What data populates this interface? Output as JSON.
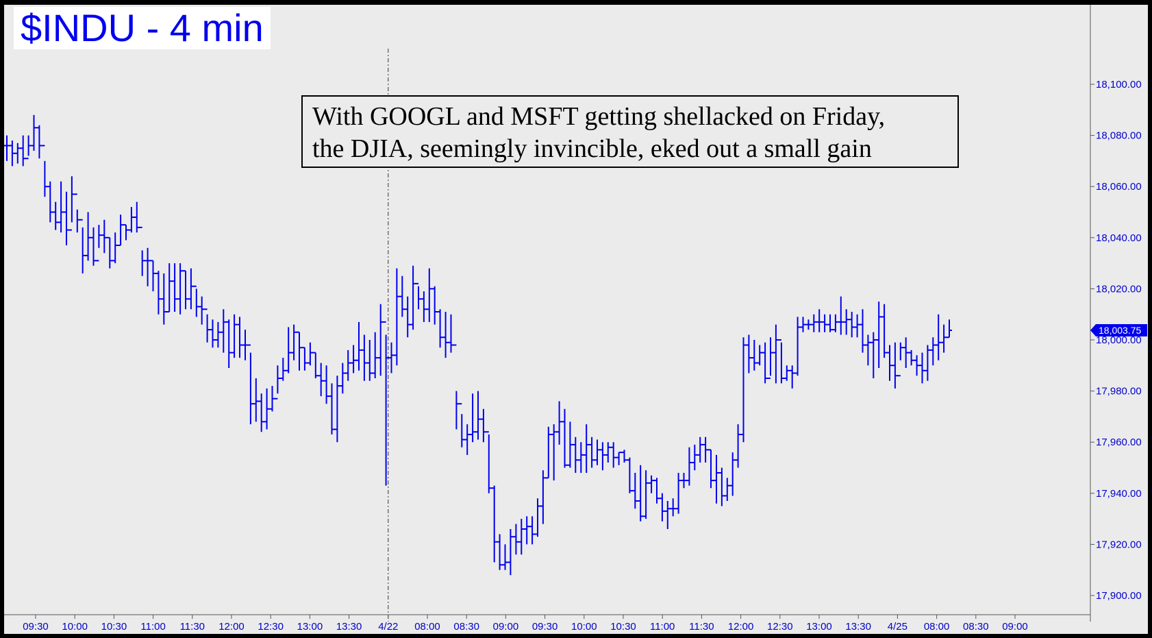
{
  "chart_data": {
    "type": "line",
    "title": "$INDU - 4 min",
    "annotation": [
      "With GOOGL and MSFT getting shellacked on Friday,",
      "the DJIA, seemingly invincible, eked out a small gain"
    ],
    "xlabel": "",
    "ylabel": "",
    "ylim": [
      17895,
      18112
    ],
    "y_ticks": [
      "18,100.00",
      "18,080.00",
      "18,060.00",
      "18,040.00",
      "18,020.00",
      "18,000.00",
      "17,980.00",
      "17,960.00",
      "17,940.00",
      "17,920.00",
      "17,900.00"
    ],
    "y_tick_values": [
      18100,
      18080,
      18060,
      18040,
      18020,
      18000,
      17980,
      17960,
      17940,
      17920,
      17900
    ],
    "x_ticks": [
      "09:30",
      "10:00",
      "10:30",
      "11:00",
      "11:30",
      "12:00",
      "12:30",
      "13:00",
      "13:30",
      "4/22",
      "08:00",
      "08:30",
      "09:00",
      "09:30",
      "10:00",
      "10:30",
      "11:00",
      "11:30",
      "12:00",
      "12:30",
      "13:00",
      "13:30",
      "4/25",
      "08:00",
      "08:30",
      "09:00"
    ],
    "last_value": "18,003.75",
    "grid": false,
    "series": [
      {
        "values": [
          18076,
          18073,
          18075,
          18071,
          18076,
          18083,
          18076,
          18060,
          18050,
          18046,
          18050,
          18043,
          18057,
          18047,
          18033,
          18040,
          18031,
          18041,
          18040,
          18031,
          18037,
          18045,
          18043,
          18048,
          18044,
          18031,
          18031,
          18026,
          18016,
          18011,
          18023,
          18016,
          18027,
          18016,
          18021,
          18013,
          18012,
          18004,
          18000,
          18003,
          18007,
          17995,
          18006,
          17998,
          17998,
          17975,
          17976,
          17968,
          17973,
          17977,
          17985,
          17988,
          17995,
          18003,
          17997,
          17991,
          17995,
          17986,
          17984,
          17978,
          17965,
          17982,
          17987,
          17991,
          17992,
          17996,
          17991,
          17987,
          17993,
          18007,
          17993,
          17994,
          18017,
          18012,
          18006,
          18022,
          18016,
          18012,
          18020,
          18011,
          18001,
          17999,
          17998,
          17975,
          17961,
          17963,
          17964,
          17969,
          17964,
          17942,
          17921,
          17912,
          17913,
          17923,
          17921,
          17926,
          17927,
          17924,
          17935,
          17946,
          17963,
          17964,
          17968,
          17951,
          17959,
          17953,
          17955,
          17959,
          17953,
          17957,
          17955,
          17958,
          17954,
          17956,
          17953,
          17941,
          17937,
          17931,
          17944,
          17945,
          17938,
          17933,
          17934,
          17934,
          17945,
          17945,
          17952,
          17955,
          17959,
          17957,
          17945,
          17948,
          17939,
          17943,
          17953,
          17963,
          17998,
          17993,
          17991,
          17995,
          17985,
          17995,
          18000,
          17985,
          17988,
          17987,
          18005,
          18006,
          18006,
          18007,
          18007,
          18006,
          18004,
          18007,
          18007,
          18008,
          18005,
          18006,
          17998,
          17999,
          18000,
          18009,
          17995,
          17990,
          17986,
          17997,
          17995,
          17992,
          17990,
          17988,
          17996,
          17998,
          17999,
          18001,
          18003.75
        ],
        "high": [
          18080,
          18078,
          18077,
          18080,
          18080,
          18088,
          18084,
          18070,
          18062,
          18054,
          18062,
          18058,
          18064,
          18051,
          18044,
          18050,
          18044,
          18045,
          18047,
          18040,
          18042,
          18049,
          18045,
          18052,
          18054,
          18035,
          18036,
          18031,
          18027,
          18026,
          18030,
          18030,
          18030,
          18027,
          18028,
          18020,
          18017,
          18010,
          18008,
          18007,
          18012,
          18008,
          18010,
          18009,
          18004,
          17995,
          17985,
          17979,
          17981,
          17982,
          17990,
          17993,
          18005,
          18006,
          18003,
          17997,
          17999,
          17995,
          17991,
          17990,
          17983,
          17986,
          17991,
          17996,
          17998,
          18007,
          18002,
          18000,
          18003,
          18014,
          18002,
          17999,
          18028,
          18025,
          18017,
          18029,
          18021,
          18019,
          18028,
          18021,
          18012,
          18011,
          18010,
          17980,
          17971,
          17967,
          17979,
          17980,
          17973,
          17963,
          17943,
          17924,
          17920,
          17926,
          17928,
          17930,
          17931,
          17931,
          17938,
          17949,
          17966,
          17967,
          17976,
          17973,
          17968,
          17962,
          17960,
          17967,
          17962,
          17961,
          17960,
          17960,
          17960,
          17956,
          17957,
          17954,
          17948,
          17951,
          17949,
          17947,
          17946,
          17940,
          17937,
          17938,
          17948,
          17948,
          17958,
          17959,
          17962,
          17962,
          17957,
          17955,
          17950,
          17946,
          17956,
          17967,
          18001,
          18002,
          18000,
          17998,
          17999,
          18001,
          18006,
          17999,
          17990,
          17990,
          18009,
          18009,
          18008,
          18010,
          18012,
          18010,
          18010,
          18010,
          18017,
          18012,
          18011,
          18010,
          18012,
          18002,
          18003,
          18015,
          18014,
          17998,
          17999,
          17999,
          18001,
          17996,
          17994,
          17995,
          17998,
          18001,
          18010,
          18006,
          18008
        ],
        "low": [
          18070,
          18068,
          18069,
          18068,
          18072,
          18074,
          18071,
          18056,
          18046,
          18043,
          18042,
          18037,
          18046,
          18042,
          18026,
          18031,
          18029,
          18036,
          18034,
          18028,
          18030,
          18037,
          18039,
          18042,
          18042,
          18025,
          18021,
          18019,
          18010,
          18006,
          18011,
          18011,
          18010,
          18012,
          18012,
          18009,
          18006,
          17999,
          17997,
          17997,
          17995,
          17989,
          17993,
          17993,
          17992,
          17967,
          17968,
          17964,
          17965,
          17972,
          17979,
          17984,
          17987,
          17992,
          17988,
          17988,
          17990,
          17985,
          17978,
          17975,
          17963,
          17960,
          17979,
          17984,
          17987,
          17988,
          17984,
          17984,
          17985,
          17986,
          17943,
          17987,
          17990,
          18009,
          18001,
          18004,
          18012,
          18007,
          18007,
          18006,
          17997,
          17993,
          17995,
          17965,
          17958,
          17955,
          17960,
          17961,
          17960,
          17940,
          17913,
          17910,
          17910,
          17908,
          17916,
          17916,
          17920,
          17920,
          17923,
          17928,
          17946,
          17945,
          17959,
          17950,
          17950,
          17948,
          17948,
          17948,
          17950,
          17951,
          17949,
          17952,
          17950,
          17951,
          17952,
          17940,
          17934,
          17929,
          17930,
          17940,
          17936,
          17929,
          17926,
          17931,
          17932,
          17942,
          17943,
          17949,
          17952,
          17952,
          17942,
          17936,
          17935,
          17937,
          17939,
          17950,
          17960,
          17987,
          17988,
          17990,
          17983,
          17986,
          17983,
          17983,
          17984,
          17981,
          17986,
          18003,
          18004,
          18003,
          18003,
          18003,
          18003,
          18003,
          18002,
          18002,
          18001,
          18001,
          17995,
          17990,
          17985,
          17989,
          17993,
          17984,
          17981,
          17992,
          17989,
          17990,
          17986,
          17983,
          17984,
          17990,
          17992,
          17995,
          18001
        ]
      }
    ]
  }
}
